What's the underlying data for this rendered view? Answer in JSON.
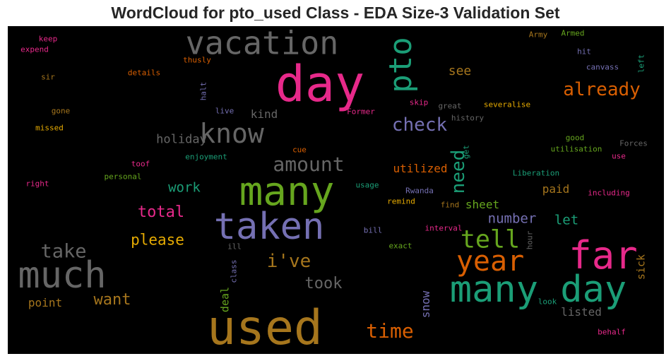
{
  "title": "WordCloud for pto_used Class - EDA Size-3 Validation Set",
  "words": [
    {
      "text": "day",
      "color": "#e7298a"
    },
    {
      "text": "used",
      "color": "#a6761d"
    },
    {
      "text": "vacation",
      "color": "#666666"
    },
    {
      "text": "pto",
      "color": "#1b9e77"
    },
    {
      "text": "many",
      "color": "#66a61e"
    },
    {
      "text": "taken",
      "color": "#7570b3"
    },
    {
      "text": "much",
      "color": "#666666"
    },
    {
      "text": "know",
      "color": "#666666"
    },
    {
      "text": "many day",
      "color": "#1b9e77"
    },
    {
      "text": "far",
      "color": "#e7298a"
    },
    {
      "text": "year",
      "color": "#d95f02"
    },
    {
      "text": "tell",
      "color": "#66a61e"
    },
    {
      "text": "already",
      "color": "#d95f02"
    },
    {
      "text": "check",
      "color": "#7570b3"
    },
    {
      "text": "amount",
      "color": "#666666"
    },
    {
      "text": "need",
      "color": "#1b9e77"
    },
    {
      "text": "time",
      "color": "#d95f02"
    },
    {
      "text": "i've",
      "color": "#a6761d"
    },
    {
      "text": "took",
      "color": "#666666"
    },
    {
      "text": "total",
      "color": "#e7298a"
    },
    {
      "text": "please",
      "color": "#e6ab02"
    },
    {
      "text": "take",
      "color": "#666666"
    },
    {
      "text": "want",
      "color": "#a6761d"
    },
    {
      "text": "work",
      "color": "#1b9e77"
    },
    {
      "text": "holiday",
      "color": "#666666"
    },
    {
      "text": "see",
      "color": "#a6761d"
    },
    {
      "text": "kind",
      "color": "#666666"
    },
    {
      "text": "number",
      "color": "#7570b3"
    },
    {
      "text": "let",
      "color": "#1b9e77"
    },
    {
      "text": "sheet",
      "color": "#66a61e"
    },
    {
      "text": "paid",
      "color": "#a6761d"
    },
    {
      "text": "utilized",
      "color": "#d95f02"
    },
    {
      "text": "point",
      "color": "#a6761d"
    },
    {
      "text": "deal",
      "color": "#66a61e"
    },
    {
      "text": "snow",
      "color": "#7570b3"
    },
    {
      "text": "listed",
      "color": "#666666"
    },
    {
      "text": "sick",
      "color": "#a6761d"
    },
    {
      "text": "keep",
      "color": "#e7298a"
    },
    {
      "text": "expend",
      "color": "#e7298a"
    },
    {
      "text": "sir",
      "color": "#a6761d"
    },
    {
      "text": "details",
      "color": "#d95f02"
    },
    {
      "text": "thusly",
      "color": "#d95f02"
    },
    {
      "text": "gone",
      "color": "#a6761d"
    },
    {
      "text": "missed",
      "color": "#e6ab02"
    },
    {
      "text": "halt",
      "color": "#7570b3"
    },
    {
      "text": "live",
      "color": "#7570b3"
    },
    {
      "text": "Army",
      "color": "#a6761d"
    },
    {
      "text": "Armed",
      "color": "#66a61e"
    },
    {
      "text": "hit",
      "color": "#7570b3"
    },
    {
      "text": "left",
      "color": "#1b9e77"
    },
    {
      "text": "canvass",
      "color": "#7570b3"
    },
    {
      "text": "skip",
      "color": "#e7298a"
    },
    {
      "text": "great",
      "color": "#666666"
    },
    {
      "text": "severalise",
      "color": "#e6ab02"
    },
    {
      "text": "Former",
      "color": "#e7298a"
    },
    {
      "text": "history",
      "color": "#666666"
    },
    {
      "text": "good",
      "color": "#66a61e"
    },
    {
      "text": "utilisation",
      "color": "#66a61e"
    },
    {
      "text": "Forces",
      "color": "#666666"
    },
    {
      "text": "use",
      "color": "#e7298a"
    },
    {
      "text": "enjoyment",
      "color": "#1b9e77"
    },
    {
      "text": "cue",
      "color": "#d95f02"
    },
    {
      "text": "get",
      "color": "#1b9e77"
    },
    {
      "text": "toof",
      "color": "#e7298a"
    },
    {
      "text": "personal",
      "color": "#66a61e"
    },
    {
      "text": "right",
      "color": "#e7298a"
    },
    {
      "text": "Liberation",
      "color": "#1b9e77"
    },
    {
      "text": "including",
      "color": "#e7298a"
    },
    {
      "text": "usage",
      "color": "#1b9e77"
    },
    {
      "text": "Rwanda",
      "color": "#7570b3"
    },
    {
      "text": "remind",
      "color": "#e6ab02"
    },
    {
      "text": "find",
      "color": "#a6761d"
    },
    {
      "text": "bill",
      "color": "#7570b3"
    },
    {
      "text": "interval",
      "color": "#e7298a"
    },
    {
      "text": "exact",
      "color": "#66a61e"
    },
    {
      "text": "ill",
      "color": "#666666"
    },
    {
      "text": "class",
      "color": "#7570b3"
    },
    {
      "text": "hour",
      "color": "#666666"
    },
    {
      "text": "look",
      "color": "#1b9e77"
    },
    {
      "text": "behalf",
      "color": "#e7298a"
    }
  ]
}
